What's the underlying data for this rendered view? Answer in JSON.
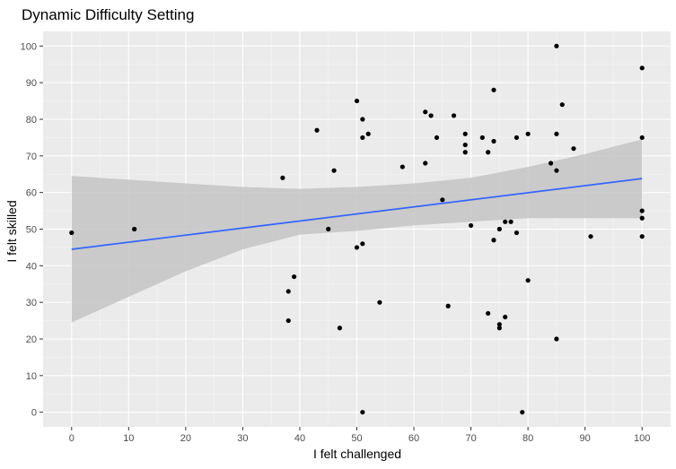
{
  "chart_data": {
    "type": "scatter",
    "title": "Dynamic Difficulty Setting",
    "xlabel": "I felt challenged",
    "ylabel": "I felt skilled",
    "xlim": [
      -5,
      105
    ],
    "ylim": [
      -4,
      104
    ],
    "x_ticks": [
      0,
      10,
      20,
      30,
      40,
      50,
      60,
      70,
      80,
      90,
      100
    ],
    "y_ticks": [
      0,
      10,
      20,
      30,
      40,
      50,
      60,
      70,
      80,
      90,
      100
    ],
    "grid": true,
    "colors": {
      "panel": "#ebebeb",
      "grid_major": "#ffffff",
      "grid_minor": "#f5f5f5",
      "points": "#000000",
      "fit_line": "#3366ff",
      "confidence_band": "#c4c4c4"
    },
    "points": [
      {
        "x": 0,
        "y": 49
      },
      {
        "x": 11,
        "y": 50
      },
      {
        "x": 37,
        "y": 64
      },
      {
        "x": 38,
        "y": 33
      },
      {
        "x": 38,
        "y": 25
      },
      {
        "x": 39,
        "y": 37
      },
      {
        "x": 43,
        "y": 77
      },
      {
        "x": 45,
        "y": 50
      },
      {
        "x": 46,
        "y": 66
      },
      {
        "x": 47,
        "y": 23
      },
      {
        "x": 50,
        "y": 85
      },
      {
        "x": 50,
        "y": 45
      },
      {
        "x": 51,
        "y": 80
      },
      {
        "x": 51,
        "y": 75
      },
      {
        "x": 51,
        "y": 46
      },
      {
        "x": 51,
        "y": 0
      },
      {
        "x": 52,
        "y": 76
      },
      {
        "x": 54,
        "y": 30
      },
      {
        "x": 58,
        "y": 67
      },
      {
        "x": 62,
        "y": 82
      },
      {
        "x": 62,
        "y": 68
      },
      {
        "x": 63,
        "y": 81
      },
      {
        "x": 64,
        "y": 75
      },
      {
        "x": 65,
        "y": 58
      },
      {
        "x": 66,
        "y": 29
      },
      {
        "x": 67,
        "y": 81
      },
      {
        "x": 69,
        "y": 76
      },
      {
        "x": 69,
        "y": 73
      },
      {
        "x": 69,
        "y": 71
      },
      {
        "x": 70,
        "y": 51
      },
      {
        "x": 72,
        "y": 75
      },
      {
        "x": 73,
        "y": 71
      },
      {
        "x": 73,
        "y": 27
      },
      {
        "x": 74,
        "y": 88
      },
      {
        "x": 74,
        "y": 74
      },
      {
        "x": 74,
        "y": 47
      },
      {
        "x": 75,
        "y": 50
      },
      {
        "x": 75,
        "y": 24
      },
      {
        "x": 75,
        "y": 23
      },
      {
        "x": 76,
        "y": 52
      },
      {
        "x": 76,
        "y": 26
      },
      {
        "x": 77,
        "y": 52
      },
      {
        "x": 78,
        "y": 75
      },
      {
        "x": 78,
        "y": 49
      },
      {
        "x": 79,
        "y": 0
      },
      {
        "x": 80,
        "y": 76
      },
      {
        "x": 80,
        "y": 36
      },
      {
        "x": 84,
        "y": 68
      },
      {
        "x": 85,
        "y": 100
      },
      {
        "x": 85,
        "y": 76
      },
      {
        "x": 85,
        "y": 66
      },
      {
        "x": 85,
        "y": 20
      },
      {
        "x": 86,
        "y": 84
      },
      {
        "x": 88,
        "y": 72
      },
      {
        "x": 91,
        "y": 48
      },
      {
        "x": 100,
        "y": 94
      },
      {
        "x": 100,
        "y": 75
      },
      {
        "x": 100,
        "y": 55
      },
      {
        "x": 100,
        "y": 53
      },
      {
        "x": 100,
        "y": 48
      }
    ],
    "fit_line": {
      "x": [
        0,
        100
      ],
      "y": [
        44.5,
        63.8
      ]
    },
    "confidence_band": {
      "x": [
        0,
        10,
        20,
        30,
        40,
        50,
        60,
        70,
        80,
        90,
        100
      ],
      "lower": [
        24.5,
        31.5,
        38.5,
        44.5,
        48.5,
        49.5,
        51,
        52,
        53,
        53,
        53
      ],
      "upper": [
        64.5,
        63.5,
        62.5,
        61.5,
        61,
        61.5,
        62.5,
        64,
        67,
        70.5,
        74.5
      ]
    }
  }
}
